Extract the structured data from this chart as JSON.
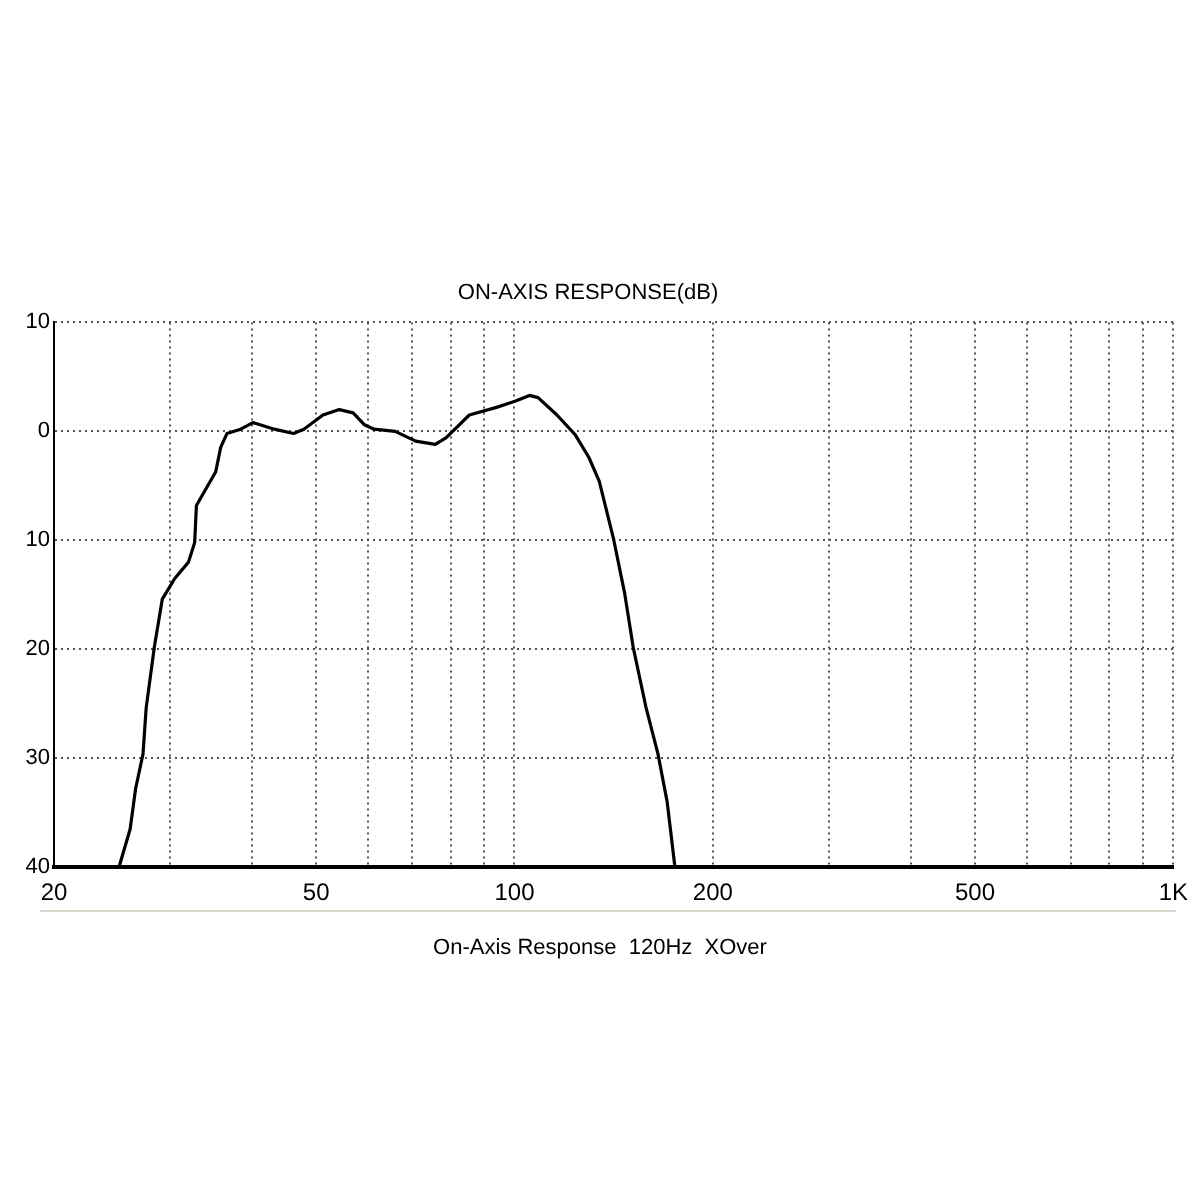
{
  "chart_data": {
    "type": "line",
    "title": "ON-AXIS RESPONSE(dB)",
    "annotations": [
      "On-Axis Response  120Hz  XOver"
    ],
    "x": [
      25.1,
      26.1,
      26.6,
      27.3,
      27.6,
      28.4,
      29.2,
      30.5,
      32.0,
      32.7,
      32.9,
      35.2,
      35.8,
      36.6,
      38.4,
      40.1,
      43.2,
      46.2,
      47.9,
      51.2,
      54.2,
      56.9,
      59.2,
      61.2,
      65.9,
      70.8,
      75.8,
      78.7,
      85.4,
      93.9,
      100.6,
      105.4,
      108.6,
      116.0,
      123.6,
      129.7,
      134.5,
      141.4,
      146.9,
      151.4,
      158.3,
      165.1,
      170.5,
      175.2
    ],
    "series": [
      {
        "color": "#000000",
        "values": [
          -40,
          -36.5,
          -32.8,
          -29.6,
          -25.4,
          -19.8,
          -15.4,
          -13.5,
          -12.0,
          -10.2,
          -6.8,
          -3.7,
          -1.5,
          -0.2,
          0.2,
          0.8,
          0.2,
          -0.2,
          0.2,
          1.5,
          2.0,
          1.7,
          0.6,
          0.2,
          0,
          -0.9,
          -1.2,
          -0.6,
          1.5,
          2.2,
          2.8,
          3.3,
          3.1,
          1.5,
          -0.3,
          -2.4,
          -4.6,
          -9.9,
          -14.8,
          -19.8,
          -25.3,
          -29.6,
          -34.0,
          -40
        ]
      }
    ],
    "log": "x",
    "xlim": [
      20,
      1000
    ],
    "xticks": [
      20,
      {
        "value": 30,
        "label": null
      },
      {
        "value": 40,
        "label": null
      },
      50,
      {
        "value": 60,
        "label": null
      },
      {
        "value": 70,
        "label": null
      },
      {
        "value": 80,
        "label": null
      },
      {
        "value": 90,
        "label": null
      },
      100,
      200,
      {
        "value": 300,
        "label": null
      },
      {
        "value": 400,
        "label": null
      },
      500,
      {
        "value": 600,
        "label": null
      },
      {
        "value": 700,
        "label": null
      },
      {
        "value": 800,
        "label": null
      },
      {
        "value": 900,
        "label": null
      },
      {
        "value": 1000,
        "label": "1K"
      }
    ],
    "ylim": [
      -40,
      10
    ],
    "yticks": [
      {
        "value": -40,
        "label": "40"
      },
      {
        "value": -30,
        "label": "30"
      },
      {
        "value": -20,
        "label": "20"
      },
      {
        "value": -10,
        "label": "10"
      },
      0,
      10
    ],
    "grid": true,
    "legend": false,
    "marker": "none",
    "line_style": "solid"
  }
}
